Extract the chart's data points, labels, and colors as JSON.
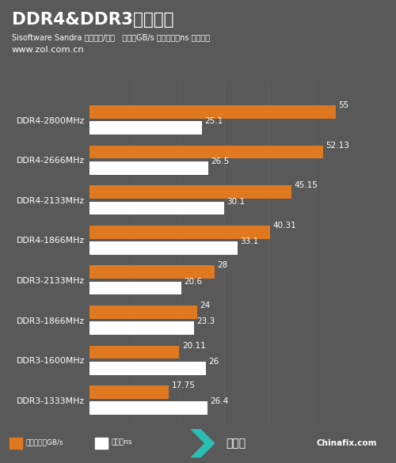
{
  "title": "DDR4&DDR3对比测试",
  "subtitle1": "Sisoftware Sandra 内存带宽/延迟   单位：GB/s 越大越好；ns 越小越好",
  "subtitle2": "www.zol.com.cn",
  "bg_color": "#595959",
  "categories": [
    "DDR3-1333MHz",
    "DDR3-1600MHz",
    "DDR3-1866MHz",
    "DDR3-2133MHz",
    "DDR4-1866MHz",
    "DDR4-2133MHz",
    "DDR4-2666MHz",
    "DDR4-2800MHz"
  ],
  "bandwidth": [
    17.75,
    20.11,
    24,
    28,
    40.31,
    45.15,
    52.13,
    55
  ],
  "latency": [
    26.4,
    26,
    23.3,
    20.6,
    33.1,
    30.1,
    26.5,
    25.1
  ],
  "bar_color_orange": "#E07820",
  "bar_color_white": "#FFFFFF",
  "text_color_white": "#FFFFFF",
  "label_color": "#FFFFFF",
  "value_color": "#FFFFFF",
  "legend_label1": "内存带宽：GB/s",
  "legend_label2": "延迟：ns",
  "xmax": 60
}
